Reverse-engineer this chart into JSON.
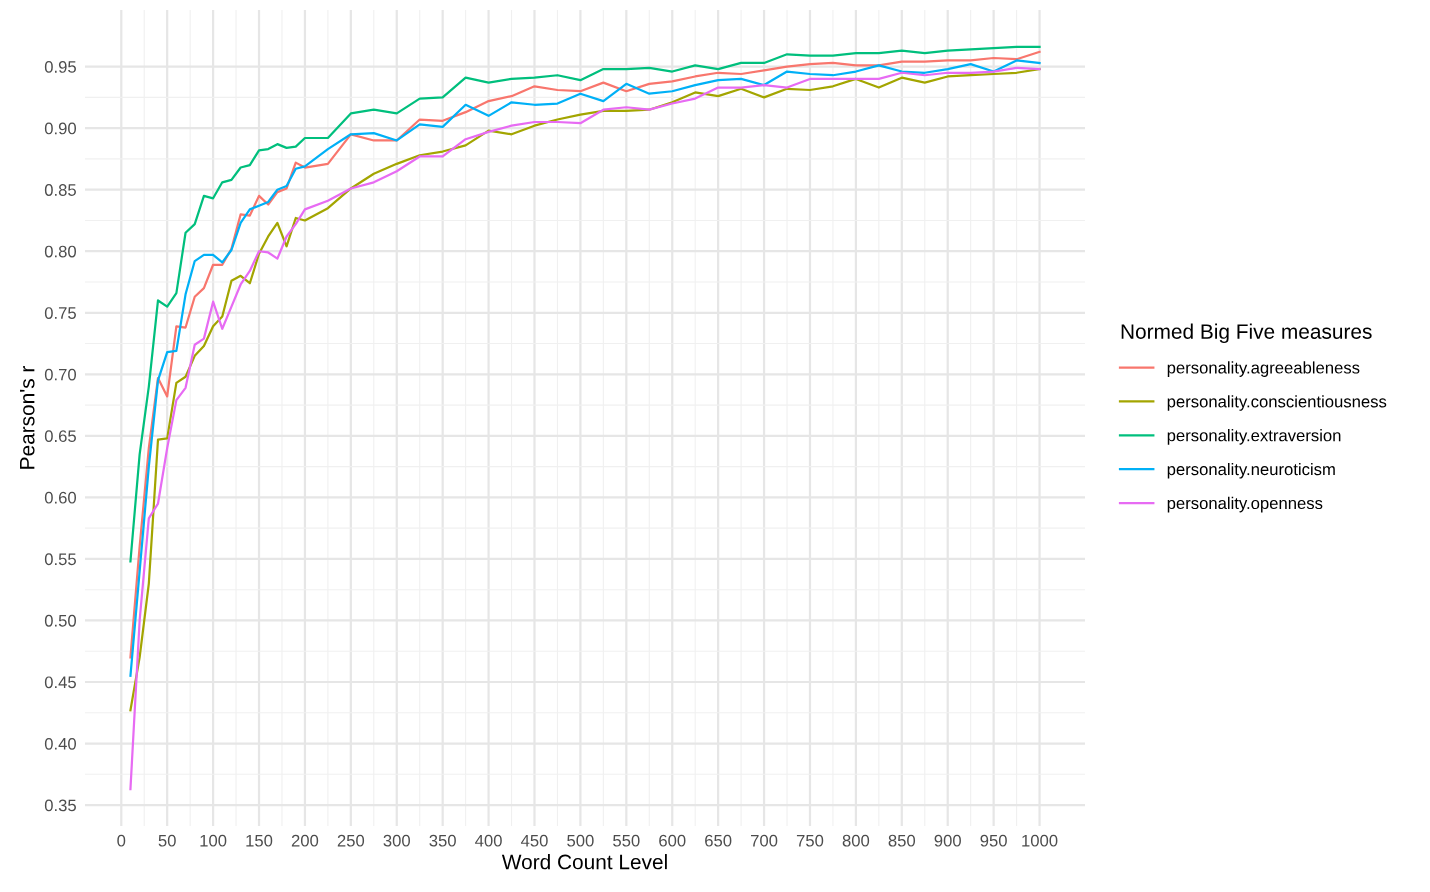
{
  "chart_data": {
    "type": "line",
    "xlabel": "Word Count Level",
    "ylabel": "Pearson's r",
    "legend_title": "Normed Big Five measures",
    "x": [
      10,
      20,
      30,
      40,
      50,
      60,
      70,
      80,
      90,
      100,
      110,
      120,
      130,
      140,
      150,
      160,
      170,
      180,
      190,
      200,
      225,
      250,
      275,
      300,
      325,
      350,
      375,
      400,
      425,
      450,
      475,
      500,
      525,
      550,
      575,
      600,
      625,
      650,
      675,
      700,
      725,
      750,
      775,
      800,
      825,
      850,
      875,
      900,
      925,
      950,
      975,
      1000
    ],
    "series": [
      {
        "name": "personality.agreeableness",
        "color": "#f8766d",
        "values": [
          0.47,
          0.56,
          0.64,
          0.697,
          0.682,
          0.739,
          0.738,
          0.763,
          0.77,
          0.789,
          0.789,
          0.802,
          0.83,
          0.829,
          0.845,
          0.838,
          0.848,
          0.851,
          0.872,
          0.868,
          0.871,
          0.895,
          0.89,
          0.89,
          0.907,
          0.906,
          0.913,
          0.922,
          0.926,
          0.934,
          0.931,
          0.93,
          0.937,
          0.93,
          0.936,
          0.938,
          0.942,
          0.945,
          0.944,
          0.947,
          0.95,
          0.952,
          0.953,
          0.951,
          0.951,
          0.954,
          0.954,
          0.955,
          0.955,
          0.957,
          0.956,
          0.962
        ]
      },
      {
        "name": "personality.conscientiousness",
        "color": "#a3a500",
        "values": [
          0.427,
          0.47,
          0.53,
          0.647,
          0.648,
          0.693,
          0.698,
          0.715,
          0.723,
          0.739,
          0.747,
          0.776,
          0.78,
          0.774,
          0.798,
          0.812,
          0.823,
          0.804,
          0.827,
          0.825,
          0.835,
          0.851,
          0.863,
          0.871,
          0.878,
          0.881,
          0.886,
          0.898,
          0.895,
          0.902,
          0.907,
          0.911,
          0.914,
          0.914,
          0.915,
          0.921,
          0.929,
          0.926,
          0.932,
          0.925,
          0.932,
          0.931,
          0.934,
          0.94,
          0.933,
          0.941,
          0.937,
          0.942,
          0.943,
          0.944,
          0.945,
          0.948
        ]
      },
      {
        "name": "personality.extraversion",
        "color": "#00bf7d",
        "values": [
          0.548,
          0.635,
          0.69,
          0.76,
          0.755,
          0.766,
          0.815,
          0.822,
          0.845,
          0.843,
          0.856,
          0.858,
          0.868,
          0.87,
          0.882,
          0.883,
          0.887,
          0.884,
          0.885,
          0.892,
          0.892,
          0.912,
          0.915,
          0.912,
          0.924,
          0.925,
          0.941,
          0.937,
          0.94,
          0.941,
          0.943,
          0.939,
          0.948,
          0.948,
          0.949,
          0.946,
          0.951,
          0.948,
          0.953,
          0.953,
          0.96,
          0.959,
          0.959,
          0.961,
          0.961,
          0.963,
          0.961,
          0.963,
          0.964,
          0.965,
          0.966,
          0.966
        ]
      },
      {
        "name": "personality.neuroticism",
        "color": "#00b0f6",
        "values": [
          0.455,
          0.54,
          0.625,
          0.695,
          0.718,
          0.719,
          0.765,
          0.792,
          0.797,
          0.797,
          0.791,
          0.801,
          0.823,
          0.834,
          0.837,
          0.84,
          0.85,
          0.853,
          0.867,
          0.869,
          0.883,
          0.895,
          0.896,
          0.89,
          0.903,
          0.901,
          0.919,
          0.91,
          0.921,
          0.919,
          0.92,
          0.928,
          0.922,
          0.936,
          0.928,
          0.93,
          0.935,
          0.939,
          0.94,
          0.935,
          0.946,
          0.944,
          0.943,
          0.946,
          0.951,
          0.946,
          0.945,
          0.948,
          0.952,
          0.946,
          0.955,
          0.953
        ]
      },
      {
        "name": "personality.openness",
        "color": "#e76bf3",
        "values": [
          0.363,
          0.5,
          0.583,
          0.595,
          0.64,
          0.679,
          0.689,
          0.724,
          0.729,
          0.759,
          0.737,
          0.755,
          0.773,
          0.784,
          0.8,
          0.799,
          0.794,
          0.812,
          0.822,
          0.834,
          0.841,
          0.851,
          0.856,
          0.865,
          0.877,
          0.877,
          0.891,
          0.897,
          0.902,
          0.905,
          0.905,
          0.904,
          0.915,
          0.917,
          0.915,
          0.92,
          0.924,
          0.933,
          0.933,
          0.935,
          0.933,
          0.94,
          0.94,
          0.94,
          0.94,
          0.945,
          0.943,
          0.945,
          0.945,
          0.946,
          0.949,
          0.948
        ]
      }
    ],
    "xlim": [
      -39.5,
      1049.5
    ],
    "xticks": [
      0,
      50,
      100,
      150,
      200,
      250,
      300,
      350,
      400,
      450,
      500,
      550,
      600,
      650,
      700,
      750,
      800,
      850,
      900,
      950,
      1000
    ],
    "ylim": [
      0.333,
      0.996
    ],
    "yticks": [
      {
        "value": 0.35,
        "label": "0.35"
      },
      {
        "value": 0.4,
        "label": "0.40"
      },
      {
        "value": 0.45,
        "label": "0.45"
      },
      {
        "value": 0.5,
        "label": "0.50"
      },
      {
        "value": 0.55,
        "label": "0.55"
      },
      {
        "value": 0.6,
        "label": "0.60"
      },
      {
        "value": 0.65,
        "label": "0.65"
      },
      {
        "value": 0.7,
        "label": "0.70"
      },
      {
        "value": 0.75,
        "label": "0.75"
      },
      {
        "value": 0.8,
        "label": "0.80"
      },
      {
        "value": 0.85,
        "label": "0.85"
      },
      {
        "value": 0.9,
        "label": "0.90"
      },
      {
        "value": 0.95,
        "label": "0.95"
      }
    ],
    "grid": true,
    "legend": "right",
    "marker": "none",
    "line_style": "solid"
  }
}
